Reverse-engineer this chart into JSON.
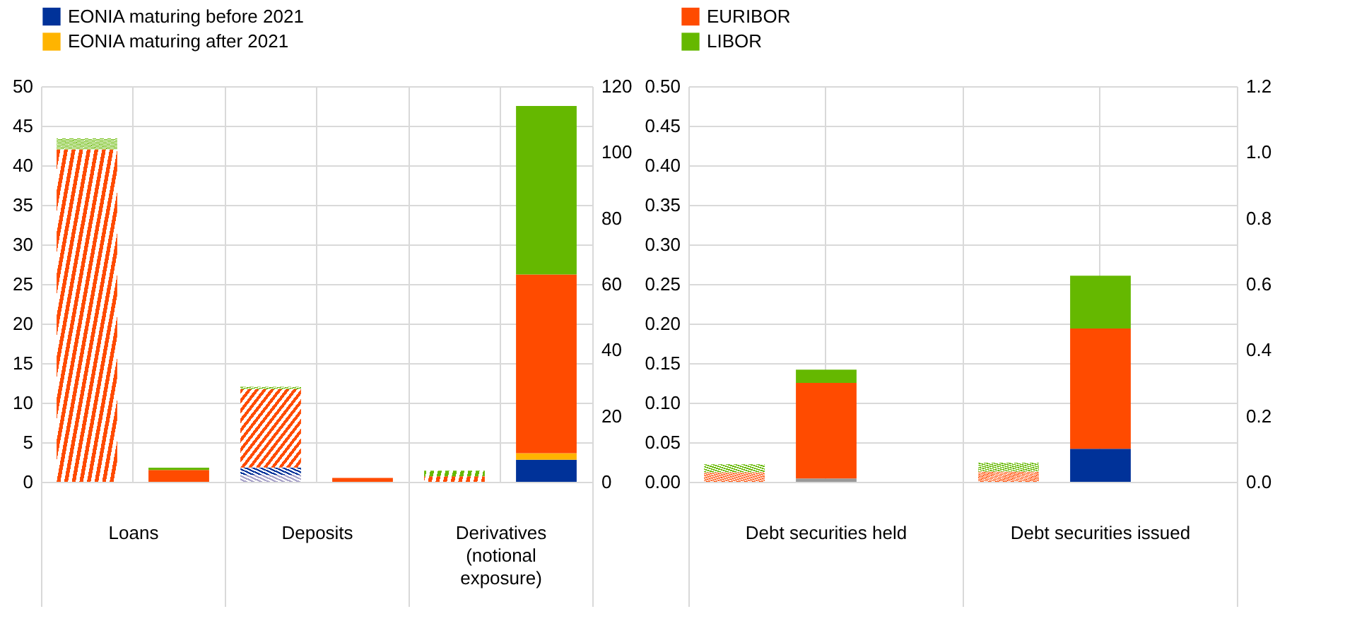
{
  "chart_data": [
    {
      "type": "bar",
      "stacked": true,
      "legend": "top",
      "grid": true,
      "categories": [
        "Loans",
        "Deposits",
        "Derivatives\n(notional\nexposure)"
      ],
      "ylim": [
        0,
        50
      ],
      "yticks": [
        0,
        5,
        10,
        15,
        20,
        25,
        30,
        35,
        40,
        45,
        50
      ],
      "y2lim": [
        0,
        120
      ],
      "y2ticks": [
        0,
        20,
        40,
        60,
        80,
        100,
        120
      ],
      "series": [
        {
          "color": "#a8a3c9",
          "axis": "y",
          "values": [
            0,
            0.9,
            0
          ]
        },
        {
          "color": "#003299",
          "axis": "y",
          "values": [
            0,
            0.9,
            0
          ]
        },
        {
          "color": "#ff4b00",
          "axis": "y",
          "values": [
            42.0,
            9.9,
            0.7
          ]
        },
        {
          "color": "#65b800",
          "axis": "y",
          "values": [
            1.4,
            0.3,
            0.7
          ]
        },
        {
          "name": "EONIA maturing before 2021",
          "color": "#003299",
          "axis": "y2",
          "values": [
            0,
            0,
            6.7
          ]
        },
        {
          "name": "EONIA maturing after 2021",
          "color": "#ffb400",
          "axis": "y2",
          "values": [
            0,
            0,
            2.0
          ]
        },
        {
          "name": "EURIBOR",
          "color": "#ff4b00",
          "axis": "y2",
          "values": [
            3.6,
            1.2,
            54.2
          ]
        },
        {
          "name": "LIBOR",
          "color": "#65b800",
          "axis": "y2",
          "values": [
            0.7,
            0,
            51.1
          ]
        }
      ]
    },
    {
      "type": "bar",
      "stacked": true,
      "grid": true,
      "categories": [
        "Debt securities held",
        "Debt securities issued"
      ],
      "ylim": [
        0,
        0.5
      ],
      "yticks": [
        {
          "value": 0,
          "label": "0.00"
        },
        0.05,
        {
          "value": 0.1,
          "label": "0.10"
        },
        0.15,
        {
          "value": 0.2,
          "label": "0.20"
        },
        0.25,
        {
          "value": 0.3,
          "label": "0.30"
        },
        0.35,
        {
          "value": 0.4,
          "label": "0.40"
        },
        0.45,
        {
          "value": 0.5,
          "label": "0.50"
        }
      ],
      "y2lim": [
        0,
        1.2
      ],
      "y2ticks": [
        {
          "value": 0,
          "label": "0.0"
        },
        0.2,
        0.4,
        0.6,
        0.8,
        {
          "value": 1.0,
          "label": "1.0"
        },
        1.2
      ],
      "series": [
        {
          "color": "#ff4b00",
          "axis": "y",
          "values": [
            0.012,
            0.013
          ]
        },
        {
          "color": "#65b800",
          "axis": "y",
          "values": [
            0.01,
            0.011
          ]
        },
        {
          "color": "#999999",
          "axis": "y2",
          "values": [
            0.01,
            0
          ]
        },
        {
          "color": "#003299",
          "axis": "y2",
          "values": [
            0,
            0.1
          ]
        },
        {
          "color": "#ff4b00",
          "axis": "y2",
          "values": [
            0.29,
            0.365
          ]
        },
        {
          "color": "#65b800",
          "axis": "y2",
          "values": [
            0.04,
            0.16
          ]
        }
      ]
    }
  ]
}
